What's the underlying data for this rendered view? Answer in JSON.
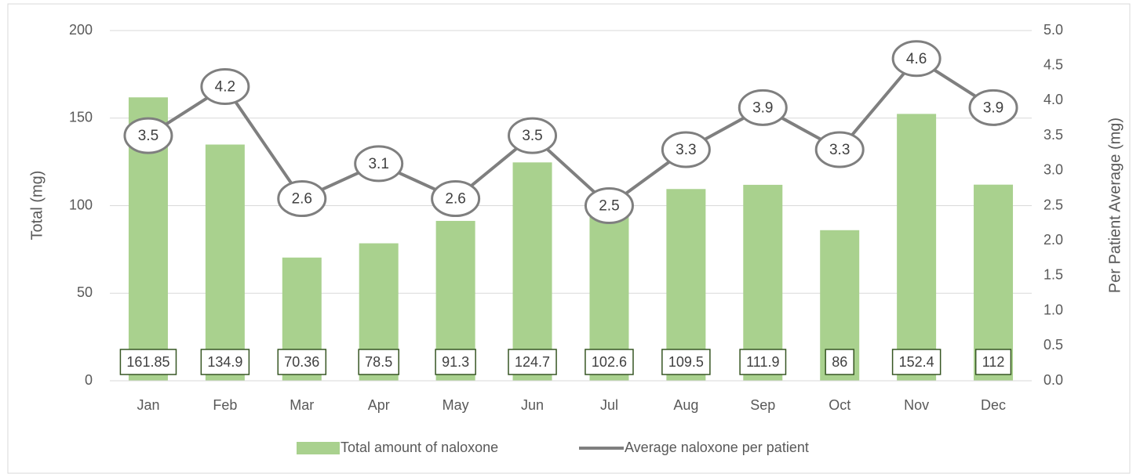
{
  "chart_data": {
    "type": "bar",
    "categories": [
      "Jan",
      "Feb",
      "Mar",
      "Apr",
      "May",
      "Jun",
      "Jul",
      "Aug",
      "Sep",
      "Oct",
      "Nov",
      "Dec"
    ],
    "series": [
      {
        "name": "Total amount of naloxone",
        "type": "bar",
        "color": "#a9d18e",
        "values": [
          161.85,
          134.9,
          70.36,
          78.5,
          91.3,
          124.7,
          102.6,
          109.5,
          111.9,
          86,
          152.4,
          112
        ]
      },
      {
        "name": "Average naloxone per patient",
        "type": "line",
        "axis": "y2",
        "color": "#7f7f7f",
        "values": [
          3.5,
          4.2,
          2.6,
          3.1,
          2.6,
          3.5,
          2.5,
          3.3,
          3.9,
          3.3,
          4.6,
          3.9
        ]
      }
    ],
    "y_label": "Total (mg)",
    "y2_label": "Per Patient Average (mg)",
    "ylim": [
      0,
      200
    ],
    "yticks": [
      0,
      50,
      100,
      150,
      200
    ],
    "y2lim": [
      0,
      5
    ],
    "y2ticks": [
      {
        "value": 0,
        "label": "0.0"
      },
      0.5,
      {
        "value": 1,
        "label": "1.0"
      },
      1.5,
      {
        "value": 2,
        "label": "2.0"
      },
      2.5,
      {
        "value": 3,
        "label": "3.0"
      },
      3.5,
      {
        "value": 4,
        "label": "4.0"
      },
      4.5,
      {
        "value": 5,
        "label": "5.0"
      }
    ],
    "grid": true,
    "legend": "bottom"
  }
}
